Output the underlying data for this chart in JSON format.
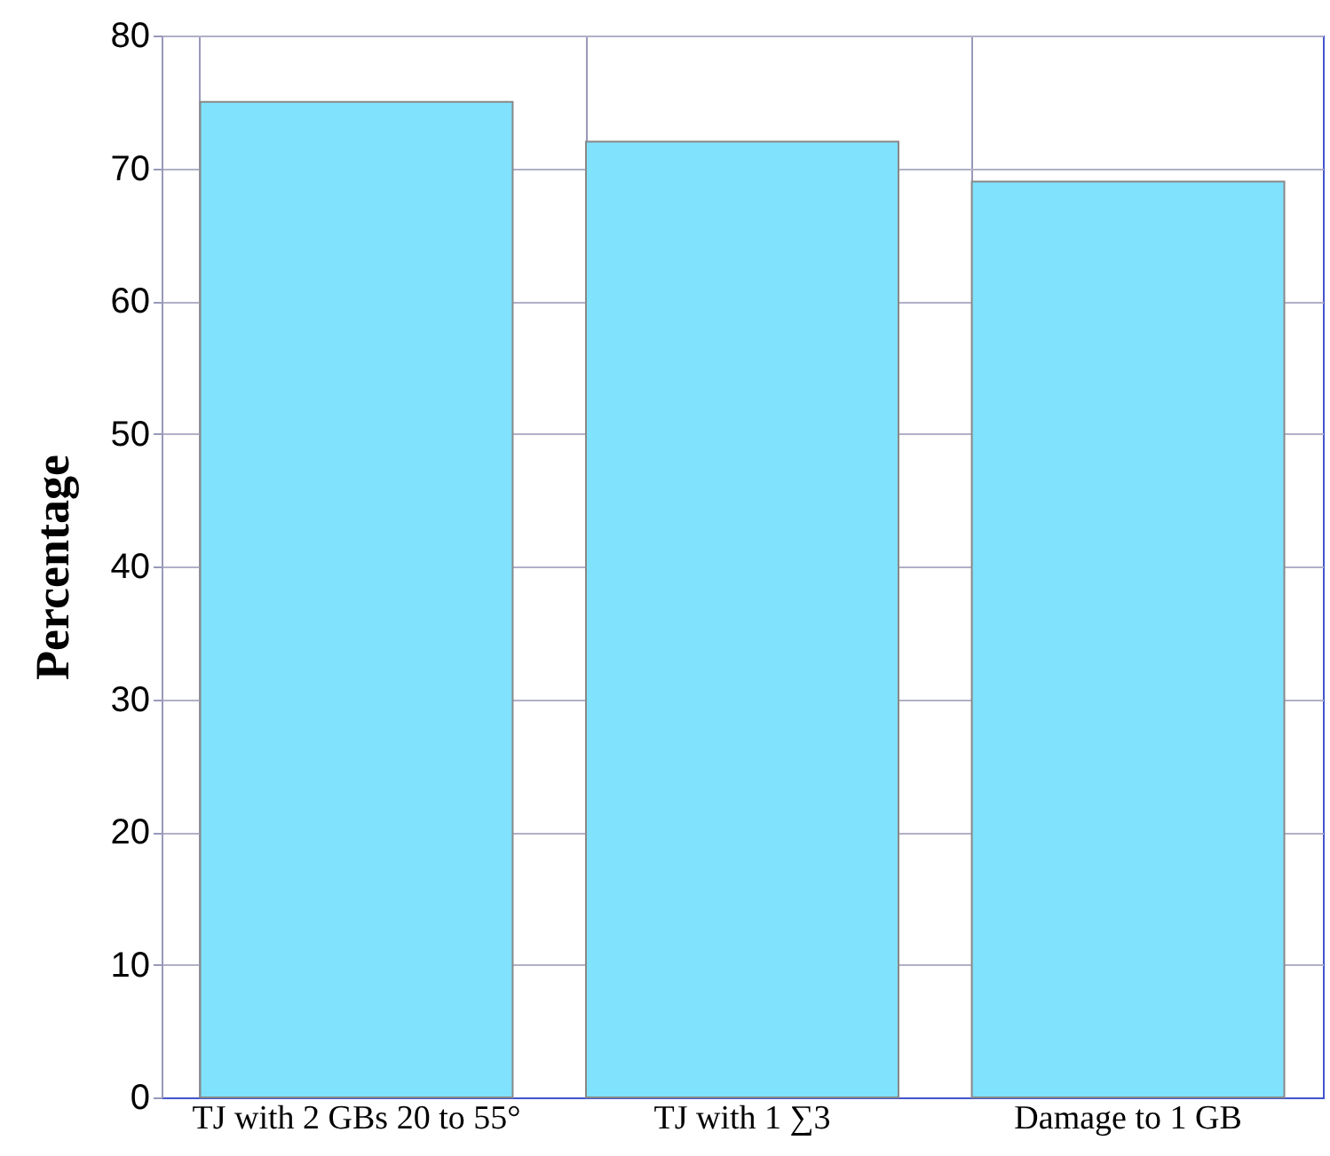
{
  "chart_data": {
    "type": "bar",
    "ylabel": "Percentage",
    "categories": [
      "TJ with 2 GBs 20 to 55°",
      "TJ with 1 ∑3",
      "Damage to 1 GB"
    ],
    "values": [
      75,
      72,
      69
    ],
    "color": "#80e2fc",
    "ylim": [
      0,
      80
    ],
    "yticks": [
      0,
      10,
      20,
      30,
      40,
      50,
      60,
      70,
      80
    ],
    "grid": true
  }
}
